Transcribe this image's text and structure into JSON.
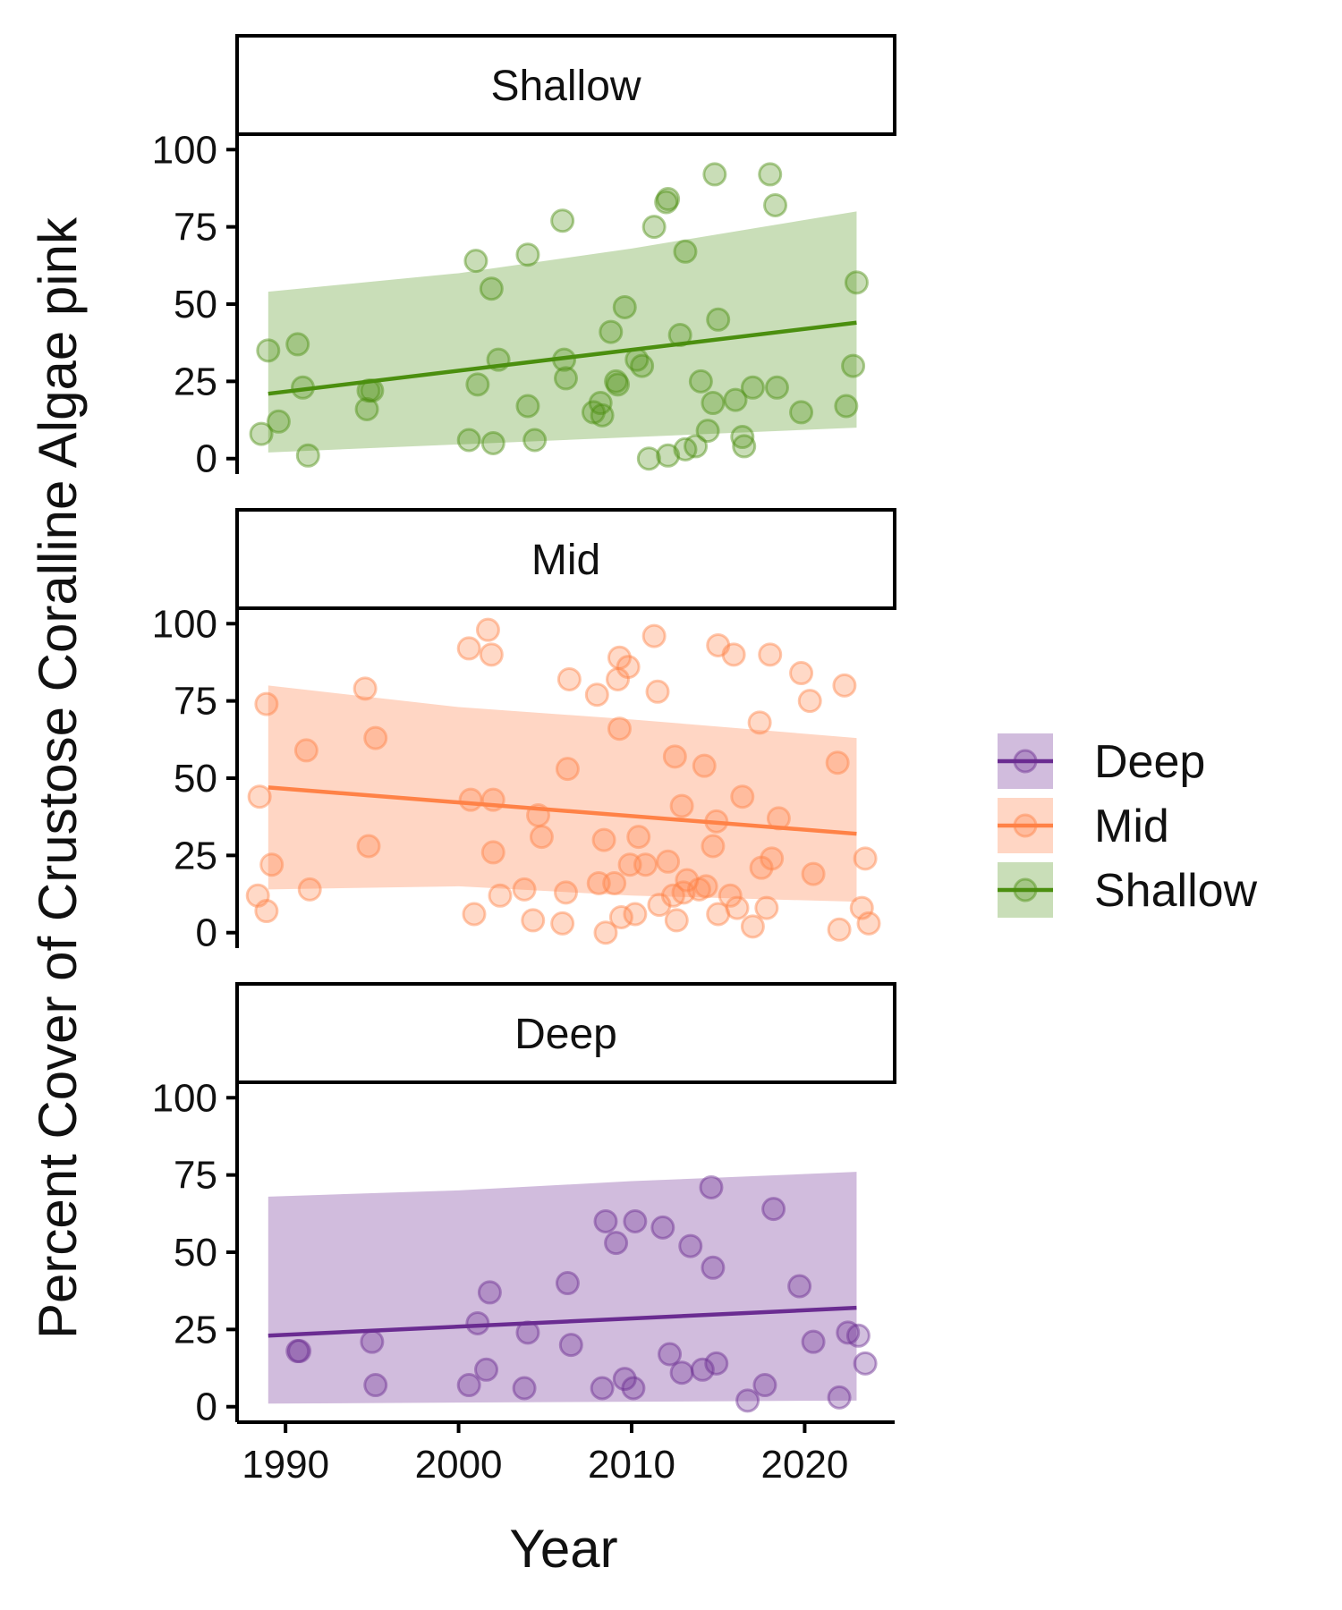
{
  "chart_data": {
    "type": "scatter",
    "xlabel": "Year",
    "ylabel": "Percent Cover of Crustose Coralline Algae pink",
    "xlim": [
      1987.2,
      2025.2
    ],
    "ylim": [
      -5,
      105
    ],
    "x_ticks": [
      1990,
      2000,
      2010,
      2020
    ],
    "y_ticks": [
      0,
      25,
      50,
      75,
      100
    ],
    "grid": false,
    "legend": {
      "position": "right",
      "entries": [
        {
          "label": "Deep",
          "color": "#6a2c91",
          "fill": "#d1bcdd"
        },
        {
          "label": "Mid",
          "color": "#ff8247",
          "fill": "#ffd6c4"
        },
        {
          "label": "Shallow",
          "color": "#4b8f0f",
          "fill": "#c9deb8"
        }
      ]
    },
    "panels": [
      {
        "name": "Shallow",
        "color": "#4b8f0f",
        "fill": "#c9deb8",
        "trend": {
          "x": [
            1989,
            2023
          ],
          "y": [
            21,
            44
          ]
        },
        "ribbon_lower": [
          [
            1989,
            2
          ],
          [
            2023,
            10
          ]
        ],
        "ribbon_upper": [
          [
            1989,
            54
          ],
          [
            2000,
            60
          ],
          [
            2010,
            68
          ],
          [
            2023,
            80
          ]
        ],
        "points": [
          [
            1988.6,
            8
          ],
          [
            1989.0,
            35
          ],
          [
            1989.6,
            12
          ],
          [
            1990.7,
            37
          ],
          [
            1991.0,
            23
          ],
          [
            1991.3,
            1
          ],
          [
            1994.7,
            16
          ],
          [
            1994.8,
            22
          ],
          [
            1995.0,
            22
          ],
          [
            2000.6,
            6
          ],
          [
            2001.0,
            64
          ],
          [
            2001.1,
            24
          ],
          [
            2001.9,
            55
          ],
          [
            2002.0,
            5
          ],
          [
            2002.3,
            32
          ],
          [
            2004.0,
            17
          ],
          [
            2004.0,
            66
          ],
          [
            2004.4,
            6
          ],
          [
            2006.0,
            77
          ],
          [
            2006.1,
            32
          ],
          [
            2006.2,
            26
          ],
          [
            2007.8,
            15
          ],
          [
            2008.2,
            18
          ],
          [
            2008.3,
            14
          ],
          [
            2008.8,
            41
          ],
          [
            2009.1,
            25
          ],
          [
            2009.2,
            24
          ],
          [
            2009.6,
            49
          ],
          [
            2010.3,
            32
          ],
          [
            2010.6,
            30
          ],
          [
            2011.0,
            0
          ],
          [
            2011.3,
            75
          ],
          [
            2012.0,
            83
          ],
          [
            2012.1,
            84
          ],
          [
            2012.1,
            1
          ],
          [
            2012.8,
            40
          ],
          [
            2013.1,
            67
          ],
          [
            2013.1,
            3
          ],
          [
            2013.7,
            4
          ],
          [
            2014.0,
            25
          ],
          [
            2014.4,
            9
          ],
          [
            2014.7,
            18
          ],
          [
            2014.8,
            92
          ],
          [
            2015.0,
            45
          ],
          [
            2016.0,
            19
          ],
          [
            2016.4,
            7
          ],
          [
            2016.5,
            4
          ],
          [
            2017.0,
            23
          ],
          [
            2018.0,
            92
          ],
          [
            2018.3,
            82
          ],
          [
            2018.4,
            23
          ],
          [
            2019.8,
            15
          ],
          [
            2022.4,
            17
          ],
          [
            2022.8,
            30
          ],
          [
            2023.0,
            57
          ]
        ]
      },
      {
        "name": "Mid",
        "color": "#ff8247",
        "fill": "#ffd6c4",
        "trend": {
          "x": [
            1989,
            2023
          ],
          "y": [
            47,
            32
          ]
        },
        "ribbon_lower": [
          [
            1989,
            14
          ],
          [
            2000,
            15
          ],
          [
            2010,
            12
          ],
          [
            2023,
            10
          ]
        ],
        "ribbon_upper": [
          [
            1989,
            80
          ],
          [
            2000,
            73
          ],
          [
            2010,
            69
          ],
          [
            2023,
            63
          ]
        ],
        "points": [
          [
            1988.4,
            12
          ],
          [
            1988.5,
            44
          ],
          [
            1988.9,
            74
          ],
          [
            1988.9,
            7
          ],
          [
            1989.2,
            22
          ],
          [
            1991.2,
            59
          ],
          [
            1991.4,
            14
          ],
          [
            1994.6,
            79
          ],
          [
            1994.8,
            28
          ],
          [
            1995.2,
            63
          ],
          [
            2000.6,
            92
          ],
          [
            2000.7,
            43
          ],
          [
            2000.9,
            6
          ],
          [
            2001.7,
            98
          ],
          [
            2001.9,
            90
          ],
          [
            2002.0,
            43
          ],
          [
            2002.0,
            26
          ],
          [
            2002.4,
            12
          ],
          [
            2003.8,
            14
          ],
          [
            2004.3,
            4
          ],
          [
            2004.6,
            38
          ],
          [
            2004.8,
            31
          ],
          [
            2006.0,
            3
          ],
          [
            2006.2,
            13
          ],
          [
            2006.3,
            53
          ],
          [
            2006.4,
            82
          ],
          [
            2008.0,
            77
          ],
          [
            2008.1,
            16
          ],
          [
            2008.4,
            30
          ],
          [
            2008.5,
            0
          ],
          [
            2009.0,
            16
          ],
          [
            2009.2,
            82
          ],
          [
            2009.3,
            66
          ],
          [
            2009.3,
            89
          ],
          [
            2009.4,
            5
          ],
          [
            2009.8,
            86
          ],
          [
            2009.9,
            22
          ],
          [
            2010.2,
            6
          ],
          [
            2010.4,
            31
          ],
          [
            2010.8,
            22
          ],
          [
            2011.3,
            96
          ],
          [
            2011.5,
            78
          ],
          [
            2011.6,
            9
          ],
          [
            2012.1,
            23
          ],
          [
            2012.4,
            12
          ],
          [
            2012.5,
            57
          ],
          [
            2012.6,
            4
          ],
          [
            2012.9,
            41
          ],
          [
            2013.0,
            13
          ],
          [
            2013.2,
            17
          ],
          [
            2013.9,
            14
          ],
          [
            2014.2,
            54
          ],
          [
            2014.3,
            15
          ],
          [
            2014.7,
            28
          ],
          [
            2014.9,
            36
          ],
          [
            2015.0,
            93
          ],
          [
            2015.0,
            6
          ],
          [
            2015.7,
            12
          ],
          [
            2015.9,
            90
          ],
          [
            2016.1,
            8
          ],
          [
            2016.4,
            44
          ],
          [
            2017.0,
            2
          ],
          [
            2017.4,
            68
          ],
          [
            2017.5,
            21
          ],
          [
            2017.8,
            8
          ],
          [
            2018.0,
            90
          ],
          [
            2018.1,
            24
          ],
          [
            2018.5,
            37
          ],
          [
            2019.8,
            84
          ],
          [
            2020.3,
            75
          ],
          [
            2020.5,
            19
          ],
          [
            2021.9,
            55
          ],
          [
            2022.0,
            1
          ],
          [
            2022.3,
            80
          ],
          [
            2023.3,
            8
          ],
          [
            2023.5,
            24
          ],
          [
            2023.7,
            3
          ]
        ]
      },
      {
        "name": "Deep",
        "color": "#6a2c91",
        "fill": "#d1bcdd",
        "trend": {
          "x": [
            1989,
            2023
          ],
          "y": [
            23,
            32
          ]
        },
        "ribbon_lower": [
          [
            1989,
            1
          ],
          [
            2023,
            2
          ]
        ],
        "ribbon_upper": [
          [
            1989,
            68
          ],
          [
            2000,
            70
          ],
          [
            2010,
            73
          ],
          [
            2023,
            76
          ]
        ],
        "points": [
          [
            1990.7,
            18
          ],
          [
            1990.8,
            18
          ],
          [
            1995.0,
            21
          ],
          [
            1995.2,
            7
          ],
          [
            2000.6,
            7
          ],
          [
            2001.1,
            27
          ],
          [
            2001.6,
            12
          ],
          [
            2001.8,
            37
          ],
          [
            2003.8,
            6
          ],
          [
            2004.0,
            24
          ],
          [
            2006.3,
            40
          ],
          [
            2006.5,
            20
          ],
          [
            2008.3,
            6
          ],
          [
            2008.5,
            60
          ],
          [
            2009.1,
            53
          ],
          [
            2009.6,
            9
          ],
          [
            2010.1,
            6
          ],
          [
            2010.2,
            60
          ],
          [
            2011.8,
            58
          ],
          [
            2012.2,
            17
          ],
          [
            2012.9,
            11
          ],
          [
            2013.4,
            52
          ],
          [
            2014.1,
            12
          ],
          [
            2014.6,
            71
          ],
          [
            2014.7,
            45
          ],
          [
            2014.9,
            14
          ],
          [
            2016.7,
            2
          ],
          [
            2017.7,
            7
          ],
          [
            2018.2,
            64
          ],
          [
            2019.7,
            39
          ],
          [
            2020.5,
            21
          ],
          [
            2022.0,
            3
          ],
          [
            2022.5,
            24
          ],
          [
            2023.1,
            23
          ],
          [
            2023.5,
            14
          ]
        ]
      }
    ]
  }
}
